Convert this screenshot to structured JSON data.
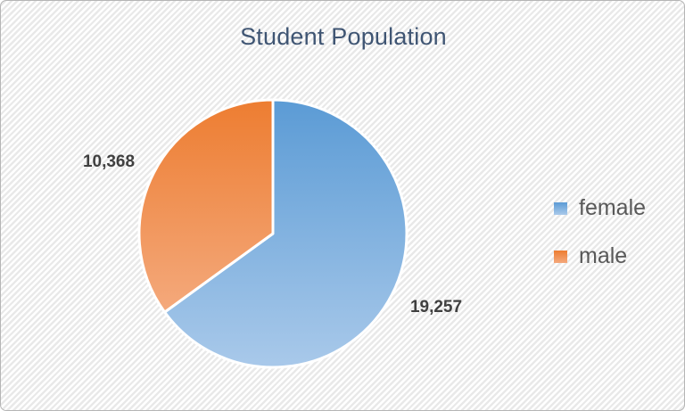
{
  "chart_data": {
    "type": "pie",
    "title": "Student Population",
    "categories": [
      "female",
      "male"
    ],
    "values": [
      19257,
      10368
    ],
    "data_labels": [
      "19,257",
      "10,368"
    ],
    "start_angle_deg": 0,
    "direction": "clockwise",
    "legend_position": "right",
    "slice_colors": [
      {
        "name": "female",
        "top": "#5b9bd5",
        "bottom": "#a9c9ea"
      },
      {
        "name": "male",
        "top": "#ed7d31",
        "bottom": "#f4a97c"
      }
    ],
    "title_color": "#3f5573",
    "data_label_color": "#404040",
    "legend_text_color": "#595959",
    "slice_separator_color": "#ffffff"
  }
}
